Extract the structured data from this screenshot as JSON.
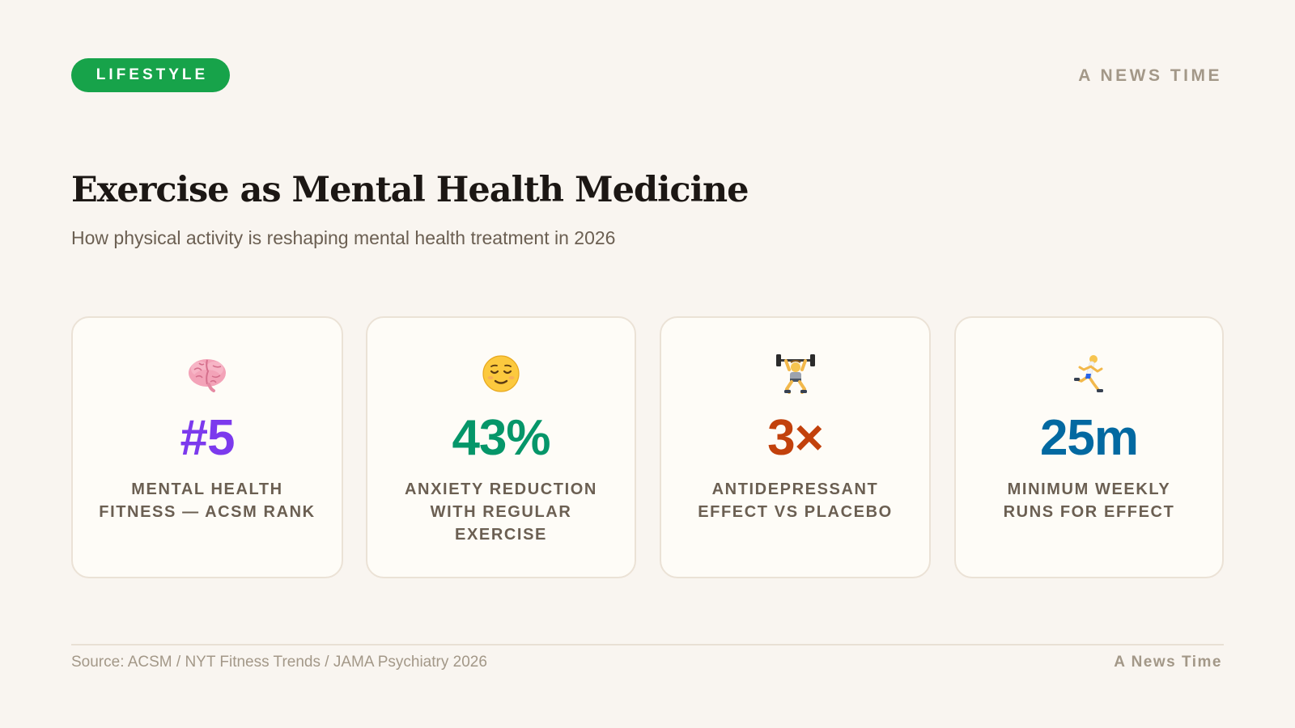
{
  "header": {
    "category": "LIFESTYLE",
    "brand": "A NEWS TIME",
    "category_color": "#17a34a"
  },
  "headline": {
    "title": "Exercise as Mental Health Medicine",
    "subtitle": "How physical activity is reshaping mental health treatment in 2026"
  },
  "stats": [
    {
      "icon": "brain-icon",
      "value": "#5",
      "label": "MENTAL HEALTH FITNESS — ACSM RANK",
      "color": "#7c3aed"
    },
    {
      "icon": "relieved-face-icon",
      "value": "43%",
      "label": "ANXIETY REDUCTION WITH REGULAR EXERCISE",
      "color": "#059669"
    },
    {
      "icon": "weightlifter-icon",
      "value": "3×",
      "label": "ANTIDEPRESSANT EFFECT VS PLACEBO",
      "color": "#c2410c"
    },
    {
      "icon": "runner-icon",
      "value": "25m",
      "label": "MINIMUM WEEKLY RUNS FOR EFFECT",
      "color": "#0369a1"
    }
  ],
  "footer": {
    "source": "Source: ACSM / NYT Fitness Trends / JAMA Psychiatry 2026",
    "brand": "A News Time"
  }
}
